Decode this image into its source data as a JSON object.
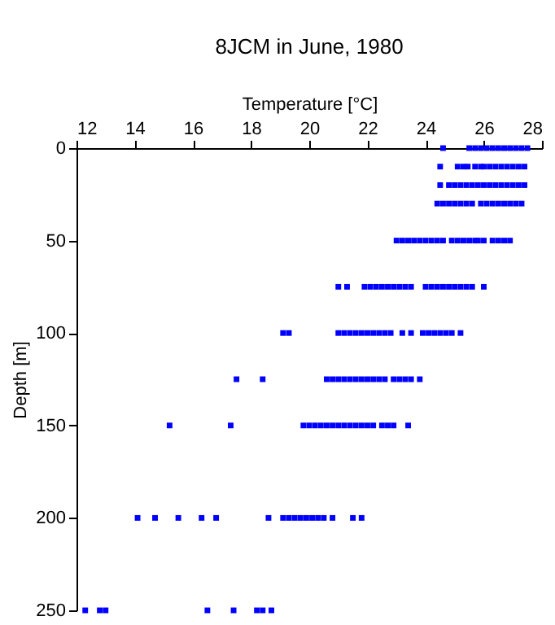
{
  "chart_data": {
    "type": "scatter",
    "title": "8JCM in June, 1980",
    "xlabel": "Temperature [°C]",
    "ylabel": "Depth [m]",
    "xlim": [
      12,
      28
    ],
    "xticks": [
      12,
      14,
      16,
      18,
      20,
      22,
      24,
      26,
      28
    ],
    "ylim": [
      250,
      0
    ],
    "yticks": [
      0,
      50,
      100,
      150,
      200,
      250
    ],
    "grid": false,
    "legend": false,
    "marker": "square",
    "series": [
      {
        "color": "#0000ff",
        "x": [
          24.6,
          25.5,
          25.7,
          25.9,
          26.1,
          26.3,
          26.5,
          26.7,
          26.9,
          27.1,
          27.3,
          27.5
        ],
        "values": [
          0,
          0,
          0,
          0,
          0,
          0,
          0,
          0,
          0,
          0,
          0,
          0
        ]
      },
      {
        "color": "#0000ff",
        "x": [
          24.5,
          25.1,
          25.3,
          25.45,
          25.7,
          25.9,
          26.0,
          26.2,
          26.4,
          26.6,
          26.8,
          27.0,
          27.2,
          27.4
        ],
        "values": [
          10,
          10,
          10,
          10,
          10,
          10,
          10,
          10,
          10,
          10,
          10,
          10,
          10,
          10
        ]
      },
      {
        "color": "#0000ff",
        "x": [
          24.5,
          24.8,
          25.0,
          25.2,
          25.4,
          25.6,
          25.8,
          26.0,
          26.2,
          26.4,
          26.6,
          26.8,
          27.0,
          27.2,
          27.4
        ],
        "values": [
          20,
          20,
          20,
          20,
          20,
          20,
          20,
          20,
          20,
          20,
          20,
          20,
          20,
          20,
          20
        ]
      },
      {
        "color": "#0000ff",
        "x": [
          24.4,
          24.6,
          24.8,
          25.0,
          25.2,
          25.4,
          25.6,
          25.9,
          26.1,
          26.3,
          26.5,
          26.7,
          26.9,
          27.1,
          27.3
        ],
        "values": [
          30,
          30,
          30,
          30,
          30,
          30,
          30,
          30,
          30,
          30,
          30,
          30,
          30,
          30,
          30
        ]
      },
      {
        "color": "#0000ff",
        "x": [
          23.0,
          23.2,
          23.4,
          23.6,
          23.8,
          24.0,
          24.2,
          24.4,
          24.6,
          24.9,
          25.1,
          25.3,
          25.5,
          25.7,
          25.8,
          26.0,
          26.3,
          26.5,
          26.7,
          26.9
        ],
        "values": [
          50,
          50,
          50,
          50,
          50,
          50,
          50,
          50,
          50,
          50,
          50,
          50,
          50,
          50,
          50,
          50,
          50,
          50,
          50,
          50
        ]
      },
      {
        "color": "#0000ff",
        "x": [
          21.0,
          21.3,
          21.9,
          22.1,
          22.3,
          22.5,
          22.7,
          22.9,
          23.1,
          23.3,
          23.5,
          24.0,
          24.2,
          24.4,
          24.6,
          24.8,
          25.0,
          25.2,
          25.4,
          25.6,
          26.0
        ],
        "values": [
          75,
          75,
          75,
          75,
          75,
          75,
          75,
          75,
          75,
          75,
          75,
          75,
          75,
          75,
          75,
          75,
          75,
          75,
          75,
          75,
          75
        ]
      },
      {
        "color": "#0000ff",
        "x": [
          19.1,
          19.3,
          21.0,
          21.2,
          21.4,
          21.6,
          21.8,
          22.0,
          22.2,
          22.4,
          22.6,
          22.8,
          23.2,
          23.5,
          23.9,
          24.1,
          24.3,
          24.5,
          24.7,
          24.9,
          25.2
        ],
        "values": [
          100,
          100,
          100,
          100,
          100,
          100,
          100,
          100,
          100,
          100,
          100,
          100,
          100,
          100,
          100,
          100,
          100,
          100,
          100,
          100,
          100
        ]
      },
      {
        "color": "#0000ff",
        "x": [
          17.5,
          18.4,
          20.6,
          20.8,
          21.0,
          21.2,
          21.4,
          21.6,
          21.8,
          22.0,
          22.2,
          22.4,
          22.6,
          22.9,
          23.1,
          23.3,
          23.5,
          23.8
        ],
        "values": [
          125,
          125,
          125,
          125,
          125,
          125,
          125,
          125,
          125,
          125,
          125,
          125,
          125,
          125,
          125,
          125,
          125,
          125
        ]
      },
      {
        "color": "#0000ff",
        "x": [
          15.2,
          17.3,
          19.8,
          20.0,
          20.2,
          20.4,
          20.6,
          20.8,
          21.0,
          21.2,
          21.4,
          21.6,
          21.8,
          22.0,
          22.2,
          22.5,
          22.7,
          22.9,
          23.4
        ],
        "values": [
          150,
          150,
          150,
          150,
          150,
          150,
          150,
          150,
          150,
          150,
          150,
          150,
          150,
          150,
          150,
          150,
          150,
          150,
          150
        ]
      },
      {
        "color": "#0000ff",
        "x": [
          14.1,
          14.7,
          15.5,
          16.3,
          16.8,
          18.6,
          19.1,
          19.3,
          19.5,
          19.7,
          19.9,
          20.1,
          20.3,
          20.5,
          20.8,
          21.5,
          21.8
        ],
        "values": [
          200,
          200,
          200,
          200,
          200,
          200,
          200,
          200,
          200,
          200,
          200,
          200,
          200,
          200,
          200,
          200,
          200
        ]
      },
      {
        "color": "#0000ff",
        "x": [
          12.3,
          12.8,
          13.0,
          16.5,
          17.4,
          18.2,
          18.4,
          18.7
        ],
        "values": [
          250,
          250,
          250,
          250,
          250,
          250,
          250,
          250
        ]
      }
    ]
  }
}
